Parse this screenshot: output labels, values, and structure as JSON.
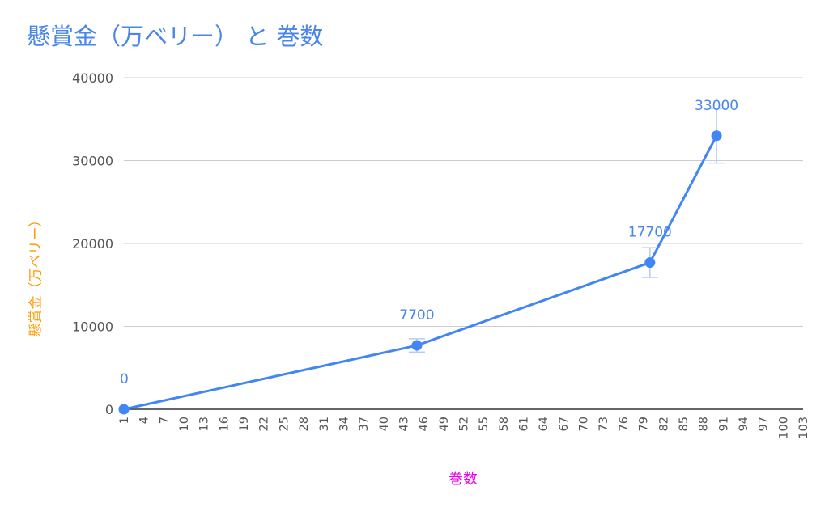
{
  "chart_data": {
    "type": "line",
    "title": "懸賞金（万ベリー） と 巻数",
    "xlabel": "巻数",
    "ylabel": "懸賞金（万ベリー）",
    "ylim": [
      0,
      40000
    ],
    "xlim": [
      1,
      103
    ],
    "y_ticks": [
      "0",
      "10000",
      "20000",
      "30000",
      "40000"
    ],
    "x_ticks": [
      "1",
      "4",
      "7",
      "10",
      "13",
      "16",
      "19",
      "22",
      "25",
      "28",
      "31",
      "34",
      "37",
      "40",
      "43",
      "46",
      "49",
      "52",
      "55",
      "58",
      "61",
      "64",
      "67",
      "70",
      "73",
      "76",
      "79",
      "82",
      "85",
      "88",
      "91",
      "94",
      "97",
      "100",
      "103"
    ],
    "points": [
      {
        "x": 1,
        "y": 0,
        "label": "0",
        "err": 0
      },
      {
        "x": 45,
        "y": 7700,
        "label": "7700",
        "err": 800
      },
      {
        "x": 80,
        "y": 17700,
        "label": "17700",
        "err": 1800
      },
      {
        "x": 90,
        "y": 33000,
        "label": "33000",
        "err": 3300
      }
    ],
    "grid": true,
    "legend": "none",
    "colors": {
      "line": "#4285f4",
      "title": "#4a86e8",
      "ylabel": "#ff9900",
      "xlabel": "#ee00ee"
    }
  }
}
